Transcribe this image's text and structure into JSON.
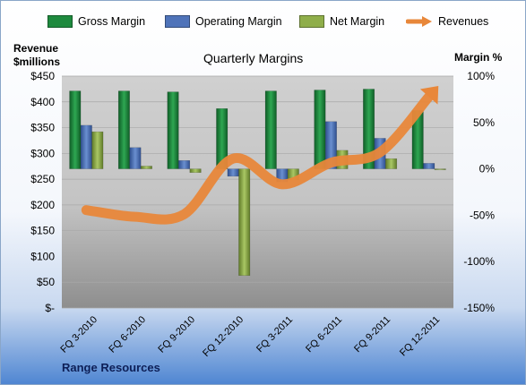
{
  "colors": {
    "gross": "#1e8a3e",
    "operating": "#4f73b9",
    "net": "#8fae4a",
    "revenue": "#e8873a"
  },
  "legend": [
    {
      "key": "gross",
      "label": "Gross Margin"
    },
    {
      "key": "operating",
      "label": "Operating Margin"
    },
    {
      "key": "net",
      "label": "Net Margin"
    },
    {
      "key": "revenue",
      "label": "Revenues"
    }
  ],
  "footer": "Range Resources",
  "chart_data": {
    "type": "bar",
    "title": "Quarterly Margins",
    "ylabel_left": "Revenue\n$millions",
    "ylabel_right": "Margin %",
    "categories": [
      "FQ 3-2010",
      "FQ 6-2010",
      "FQ 9-2010",
      "FQ 12-2010",
      "FQ 3-2011",
      "FQ 6-2011",
      "FQ 9-2011",
      "FQ 12-2011"
    ],
    "ylim_left": [
      0,
      450
    ],
    "ylim_right": [
      -150,
      100
    ],
    "yticks_left": [
      "$-",
      "$50",
      "$100",
      "$150",
      "$200",
      "$250",
      "$300",
      "$350",
      "$400",
      "$450"
    ],
    "yticks_right": [
      "-150%",
      "-100%",
      "-50%",
      "0%",
      "50%",
      "100%"
    ],
    "series": [
      {
        "name": "Gross Margin",
        "key": "gross",
        "axis": "right",
        "values": [
          84,
          84,
          83,
          65,
          84,
          85,
          86,
          63
        ]
      },
      {
        "name": "Operating Margin",
        "key": "operating",
        "axis": "right",
        "values": [
          47,
          23,
          9,
          -8,
          -14,
          51,
          33,
          6
        ]
      },
      {
        "name": "Net Margin",
        "key": "net",
        "axis": "right",
        "values": [
          40,
          3,
          -4,
          -115,
          -12,
          20,
          11,
          -1
        ]
      },
      {
        "name": "Revenues",
        "key": "revenue",
        "axis": "left",
        "type": "line",
        "values": [
          190,
          177,
          182,
          290,
          240,
          282,
          302,
          410
        ]
      }
    ],
    "grid": true,
    "legend_position": "top"
  }
}
